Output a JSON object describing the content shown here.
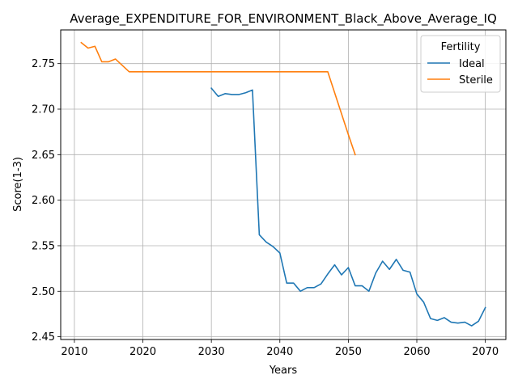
{
  "chart_data": {
    "type": "line",
    "title": "Average_EXPENDITURE_FOR_ENVIRONMENT_Black_Above_Average_IQ",
    "xlabel": "Years",
    "ylabel": "Score(1-3)",
    "xlim": [
      2008,
      2073
    ],
    "ylim": [
      2.447,
      2.787
    ],
    "xticks": [
      2010,
      2020,
      2030,
      2040,
      2050,
      2060,
      2070
    ],
    "yticks": [
      2.45,
      2.5,
      2.55,
      2.6,
      2.65,
      2.7,
      2.75
    ],
    "xtick_labels": [
      "2010",
      "2020",
      "2030",
      "2040",
      "2050",
      "2060",
      "2070"
    ],
    "ytick_labels": [
      "2.45",
      "2.50",
      "2.55",
      "2.60",
      "2.65",
      "2.70",
      "2.75"
    ],
    "grid": true,
    "legend": {
      "title": "Fertility",
      "placement": "top-right"
    },
    "series": [
      {
        "name": "Ideal",
        "color": "#1f77b4",
        "x": [
          2030,
          2031,
          2032,
          2033,
          2034,
          2035,
          2036,
          2037,
          2038,
          2039,
          2040,
          2041,
          2042,
          2043,
          2044,
          2045,
          2046,
          2047,
          2048,
          2049,
          2050,
          2051,
          2052,
          2053,
          2054,
          2055,
          2056,
          2057,
          2058,
          2059,
          2060,
          2061,
          2062,
          2063,
          2064,
          2065,
          2066,
          2067,
          2068,
          2069,
          2070
        ],
        "y": [
          2.723,
          2.714,
          2.717,
          2.716,
          2.716,
          2.718,
          2.721,
          2.562,
          2.554,
          2.549,
          2.542,
          2.509,
          2.509,
          2.5,
          2.504,
          2.504,
          2.508,
          2.519,
          2.529,
          2.518,
          2.526,
          2.506,
          2.506,
          2.5,
          2.52,
          2.533,
          2.524,
          2.535,
          2.523,
          2.521,
          2.497,
          2.488,
          2.47,
          2.468,
          2.471,
          2.466,
          2.465,
          2.466,
          2.462,
          2.467,
          2.482
        ]
      },
      {
        "name": "Sterile",
        "color": "#ff7f0e",
        "x": [
          2011,
          2012,
          2013,
          2014,
          2015,
          2016,
          2017,
          2018,
          2019,
          2020,
          2025,
          2030,
          2035,
          2040,
          2045,
          2047,
          2048,
          2049,
          2050,
          2051
        ],
        "y": [
          2.773,
          2.767,
          2.769,
          2.752,
          2.752,
          2.755,
          2.748,
          2.741,
          2.741,
          2.741,
          2.741,
          2.741,
          2.741,
          2.741,
          2.741,
          2.741,
          2.718,
          2.695,
          2.672,
          2.65
        ]
      }
    ]
  }
}
